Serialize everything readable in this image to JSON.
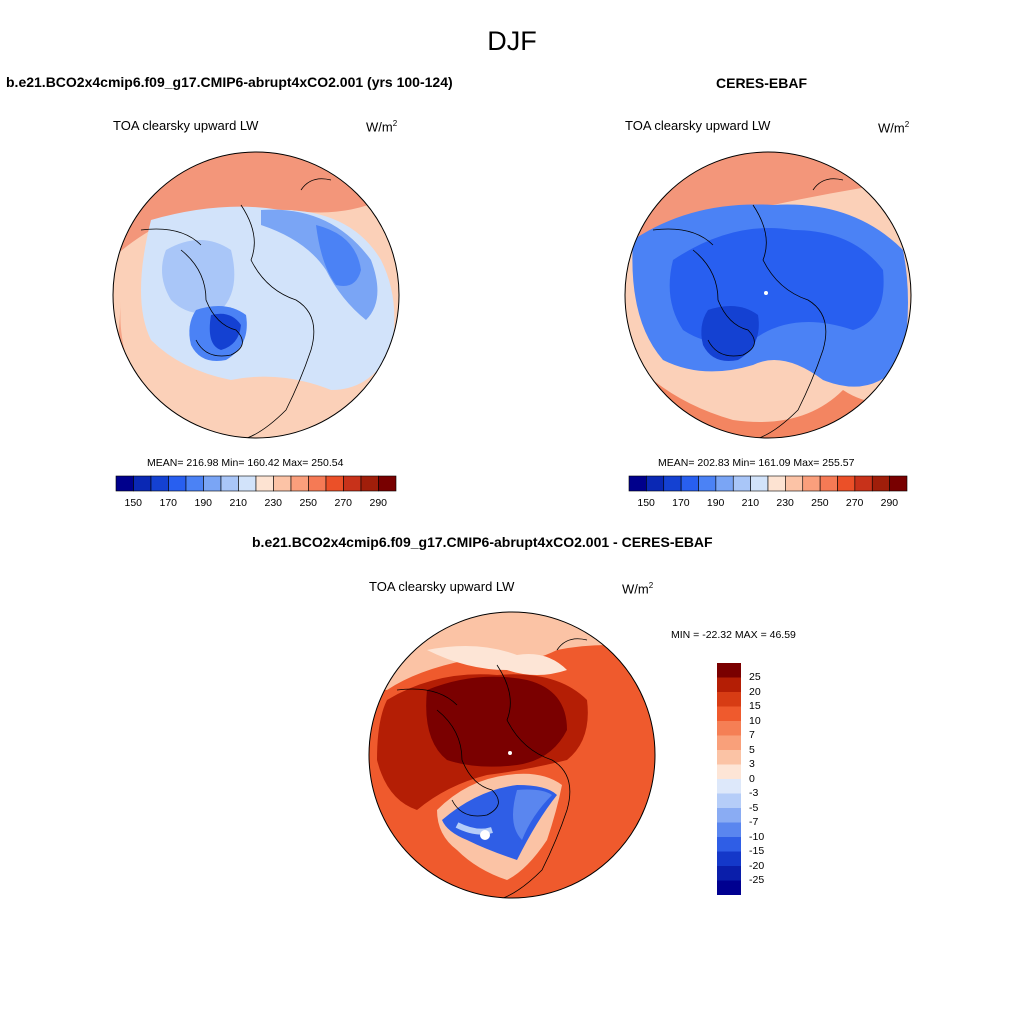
{
  "title": "DJF",
  "unit_base": "W/m",
  "unit_exp": "2",
  "panels": [
    {
      "title": "b.e21.BCO2x4cmip6.f09_g17.CMIP6-abrupt4xCO2.001 (yrs 100-124)",
      "variable": "TOA clearsky upward LW",
      "stats": "MEAN= 216.98  Min= 160.42  Max= 250.54"
    },
    {
      "title": "CERES-EBAF",
      "variable": "TOA clearsky upward LW",
      "stats": "MEAN= 202.83  Min= 161.09  Max= 255.57"
    },
    {
      "title": "b.e21.BCO2x4cmip6.f09_g17.CMIP6-abrupt4xCO2.001 - CERES-EBAF",
      "variable": "TOA clearsky upward LW",
      "stats": "MIN = -22.32 MAX =  46.59"
    }
  ],
  "abs_colorbar": {
    "ticks": [
      "150",
      "170",
      "190",
      "210",
      "230",
      "250",
      "270",
      "290"
    ],
    "colors": [
      "#00008c",
      "#0a28b4",
      "#1441d2",
      "#285ff0",
      "#4b82f5",
      "#7aa5f5",
      "#a9c6f8",
      "#d2e3fa",
      "#fde3d2",
      "#fcc3a6",
      "#fa9f7c",
      "#f57a55",
      "#eb5028",
      "#c8321a",
      "#a01e0a",
      "#780000"
    ]
  },
  "diff_colorbar": {
    "labels": [
      "25",
      "20",
      "15",
      "10",
      "7",
      "5",
      "3",
      "0",
      "-3",
      "-5",
      "-7",
      "-10",
      "-15",
      "-20",
      "-25"
    ],
    "colors": [
      "#7a0000",
      "#b41e05",
      "#d73c14",
      "#ef5a2d",
      "#f57f55",
      "#f9a07a",
      "#fbc3a5",
      "#fde5d6",
      "#dde8fa",
      "#b5cdf8",
      "#8aacf3",
      "#5a86ef",
      "#2f5ee6",
      "#1438c9",
      "#0a1eaa",
      "#000090"
    ]
  }
}
